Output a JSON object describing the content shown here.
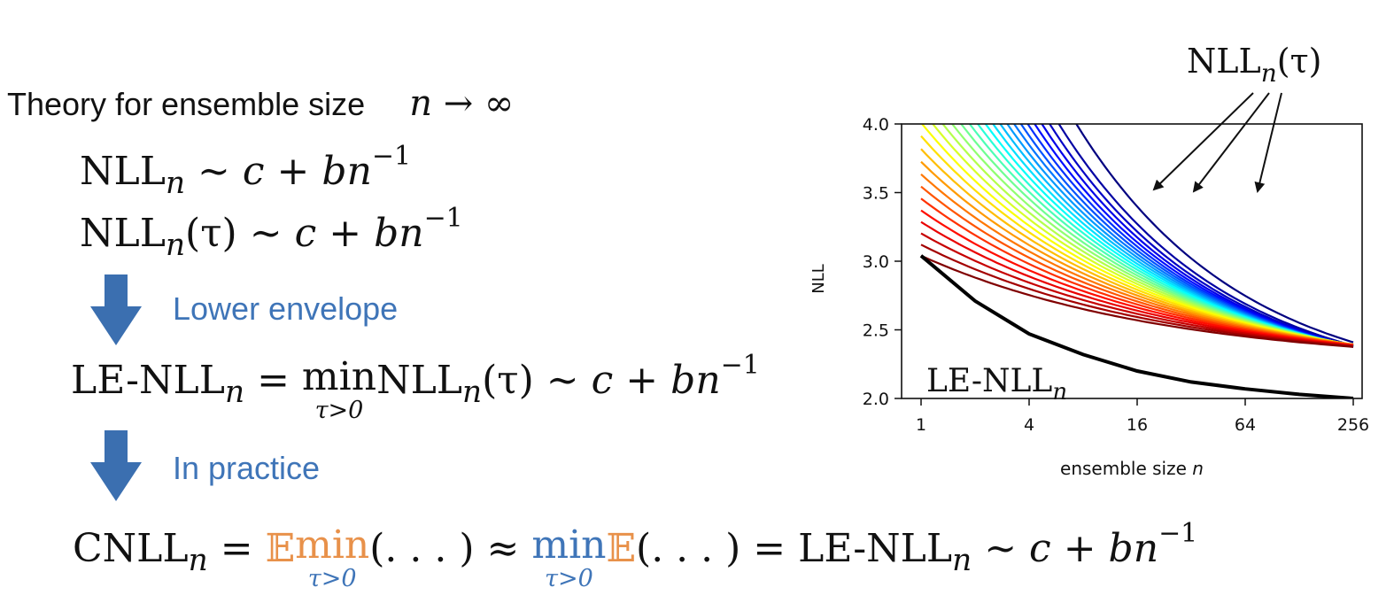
{
  "theory": {
    "prefix": "Theory for ensemble size",
    "n": "n",
    "arrow": "→",
    "inf": "∞"
  },
  "eq1": {
    "lhs": "NLL",
    "sub": "n",
    "rel": " ∼ ",
    "c": "c",
    "plus": " + ",
    "b": "b",
    "n": "n",
    "exp": "−1"
  },
  "eq2": {
    "lhs": "NLL",
    "sub": "n",
    "arg": "(τ)",
    "rel": " ∼ ",
    "c": "c",
    "plus": " + ",
    "b": "b",
    "n": "n",
    "exp": "−1"
  },
  "step1": {
    "label": "Lower envelope"
  },
  "eq3": {
    "lhs": "LE-NLL",
    "sub": "n",
    "eq": " = ",
    "min": "min",
    "under": "τ>0",
    "nll": "NLL",
    "sub2": "n",
    "arg": "(τ)",
    "rel": " ∼ ",
    "c": "c",
    "plus": " + ",
    "b": "b",
    "n": "n",
    "exp": "−1"
  },
  "step2": {
    "label": "In practice"
  },
  "eq4": {
    "lhs": "CNLL",
    "sub": "n",
    "eq": " = ",
    "E": "𝔼",
    "min": "min",
    "under": "τ>0",
    "args": "(. . . )",
    "approx": " ≈ ",
    "min2": "min",
    "under2": "τ>0",
    "E2": "𝔼",
    "args2": "(. . . )",
    "eq2": " = ",
    "le": "LE-NLL",
    "sub2": "n",
    "rel": " ∼ ",
    "c": "c",
    "plus": " + ",
    "b": "b",
    "n": "n",
    "exp": "−1"
  },
  "callout": {
    "nll": "NLL",
    "sub": "n",
    "arg": "(τ)"
  },
  "envelope_label": {
    "text": "LE-NLL",
    "sub": "n"
  },
  "colors": {
    "accent_blue": "#3f75b8",
    "accent_orange": "#e8914a",
    "arrow_blue": "#3b6fb0"
  },
  "chart_data": {
    "type": "line",
    "xlabel": "ensemble size",
    "xlabel_var": "n",
    "ylabel": "NLL",
    "x_scale": "log2",
    "x_ticks": [
      "1",
      "4",
      "16",
      "64",
      "256"
    ],
    "y_ticks": [
      "2.0",
      "2.5",
      "3.0",
      "3.5",
      "4.0"
    ],
    "xlim": [
      1,
      256
    ],
    "ylim": [
      2.0,
      4.0
    ],
    "colormap": "jet (blue for large τ → red for small τ)",
    "series_count": 30,
    "lower_envelope": {
      "name": "LE-NLL",
      "color": "#000000",
      "x": [
        1,
        2,
        4,
        8,
        16,
        32,
        64,
        128,
        256
      ],
      "y": [
        3.04,
        2.71,
        2.47,
        2.32,
        2.2,
        2.12,
        2.07,
        2.03,
        2.0
      ]
    }
  }
}
